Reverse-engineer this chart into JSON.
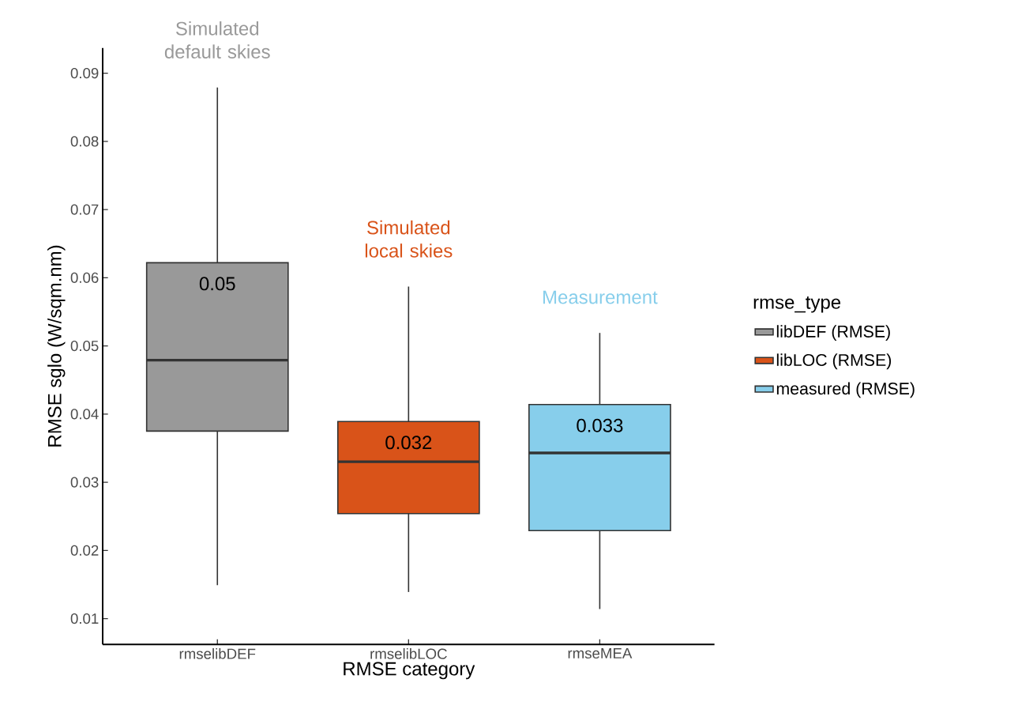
{
  "chart_data": {
    "type": "box",
    "xlabel": "RMSE category",
    "ylabel": "RMSE sglo (W/sqm.nm)",
    "legend_title": "rmse_type",
    "legend": "right",
    "grid": false,
    "categories": [
      "rmselibDEF",
      "rmselibLOC",
      "rmseMEA"
    ],
    "ylim": [
      0.0062,
      0.0937
    ],
    "yticks": [
      0.01,
      0.02,
      0.03,
      0.04,
      0.05,
      0.06,
      0.07,
      0.08,
      0.09
    ],
    "series": [
      {
        "name": "libDEF (RMSE)",
        "color": "#999999",
        "boxes": [
          {
            "low": 0.0149,
            "q1": 0.0375,
            "median": 0.0479,
            "q3": 0.0622,
            "high": 0.0879
          },
          null,
          null
        ]
      },
      {
        "name": "libLOC (RMSE)",
        "color": "#d95319",
        "boxes": [
          null,
          {
            "low": 0.0139,
            "q1": 0.0254,
            "median": 0.033,
            "q3": 0.0389,
            "high": 0.0587
          },
          null
        ]
      },
      {
        "name": "measured (RMSE)",
        "color": "#87ceeb",
        "boxes": [
          null,
          null,
          {
            "low": 0.0114,
            "q1": 0.0229,
            "median": 0.0343,
            "q3": 0.0414,
            "high": 0.0519
          }
        ]
      }
    ],
    "annotations": [
      "Simulated default skies",
      "Simulated local skies",
      "Measurement",
      "0.05",
      "0.032",
      "0.033"
    ]
  }
}
